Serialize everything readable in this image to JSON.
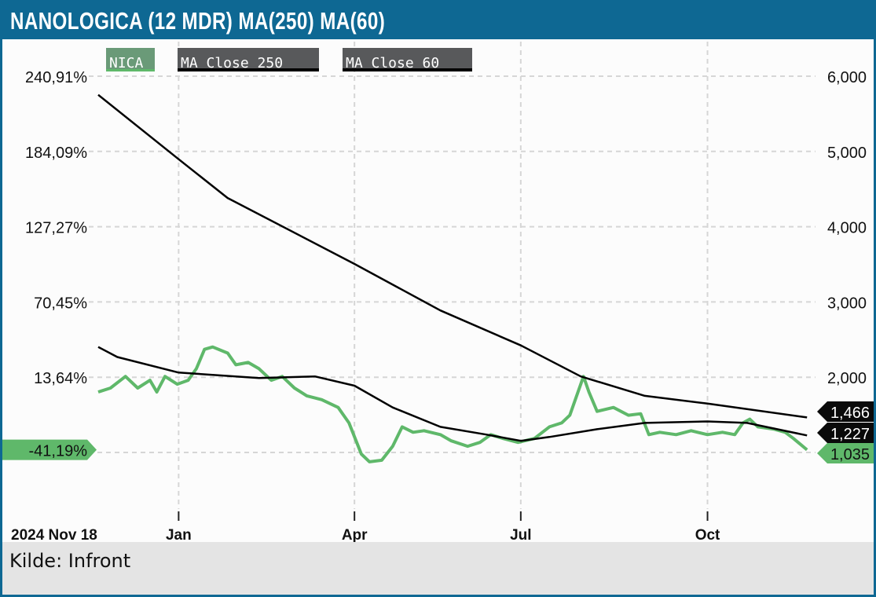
{
  "title": "NANOLOGICA (12 MDR) MA(250) MA(60)",
  "footer": {
    "source": "Kilde: Infront"
  },
  "legend": [
    {
      "label": "NICA",
      "color": "#6a9a78",
      "underline": "#5fb86a"
    },
    {
      "label": "MA Close 250",
      "color": "#58595b",
      "underline": "#000000"
    },
    {
      "label": "MA Close 60",
      "color": "#58595b",
      "underline": "#000000"
    }
  ],
  "colors": {
    "frame": "#0e6893",
    "nica": "#5fb86a",
    "ma": "#000000",
    "watermark": "#e8ebe6"
  },
  "watermark": "NICA",
  "chart_data": {
    "type": "line",
    "title": "NANOLOGICA (12 MDR) MA(250) MA(60)",
    "x_unit": "weeks since 2024 Nov 18",
    "start_label": "2024 Nov 18",
    "x_ticks": [
      {
        "x": 5.9,
        "label": "Jan"
      },
      {
        "x": 18.8,
        "label": "Apr"
      },
      {
        "x": 31.0,
        "label": "Jul"
      },
      {
        "x": 44.7,
        "label": "Oct"
      }
    ],
    "xlim": [
      0,
      52
    ],
    "ylim": [
      1000,
      6000
    ],
    "right_ticks": [
      {
        "v": 6000,
        "label": "6,000"
      },
      {
        "v": 5000,
        "label": "5,000"
      },
      {
        "v": 4000,
        "label": "4,000"
      },
      {
        "v": 3000,
        "label": "3,000"
      },
      {
        "v": 2000,
        "label": "2,000"
      }
    ],
    "left_ticks": [
      {
        "v": 6000,
        "label": "240,91%"
      },
      {
        "v": 5000,
        "label": "184,09%"
      },
      {
        "v": 4000,
        "label": "127,27%"
      },
      {
        "v": 3000,
        "label": "70,45%"
      },
      {
        "v": 2000,
        "label": "13,64%"
      }
    ],
    "current_pct": {
      "v": 1035,
      "label": "-41,19%"
    },
    "grid": true,
    "series": [
      {
        "name": "NICA",
        "color": "#5fb86a",
        "last_label": "1,035",
        "x": [
          0,
          0.9,
          2.0,
          2.9,
          3.8,
          4.3,
          4.9,
          5.8,
          6.6,
          7.2,
          7.8,
          8.4,
          9.5,
          10.1,
          11.0,
          11.8,
          12.7,
          13.5,
          14.4,
          15.3,
          16.4,
          17.6,
          18.4,
          19.3,
          19.9,
          20.8,
          21.6,
          22.3,
          23.1,
          23.9,
          25.1,
          25.9,
          27.1,
          28.0,
          28.8,
          29.7,
          30.8,
          32.0,
          33.1,
          34.0,
          34.6,
          35.2,
          35.6,
          36.0,
          36.6,
          37.8,
          38.9,
          39.8,
          40.4,
          41.2,
          42.4,
          43.5,
          44.7,
          45.8,
          46.7,
          47.3,
          47.8,
          48.4,
          49.6,
          50.4,
          51.0,
          52.0
        ],
        "y": [
          1804,
          1856,
          2010,
          1856,
          1959,
          1804,
          2010,
          1907,
          1959,
          2113,
          2371,
          2402,
          2320,
          2165,
          2196,
          2113,
          1959,
          2010,
          1856,
          1753,
          1701,
          1598,
          1392,
          979,
          876,
          897,
          1082,
          1340,
          1268,
          1289,
          1237,
          1155,
          1082,
          1134,
          1237,
          1186,
          1134,
          1186,
          1340,
          1392,
          1495,
          1804,
          2010,
          1804,
          1546,
          1598,
          1495,
          1515,
          1237,
          1268,
          1237,
          1289,
          1237,
          1268,
          1237,
          1392,
          1443,
          1340,
          1309,
          1268,
          1186,
          1035
        ]
      },
      {
        "name": "MA Close 250",
        "color": "#000000",
        "last_label": "1,466",
        "x": [
          0,
          5.9,
          9.5,
          18.8,
          25.1,
          31.0,
          35.4,
          40.1,
          44.7,
          52.0
        ],
        "y": [
          5753,
          4897,
          4381,
          3505,
          2887,
          2423,
          2010,
          1753,
          1649,
          1466
        ]
      },
      {
        "name": "MA Close 60",
        "color": "#000000",
        "last_label": "1,227",
        "x": [
          0,
          1.4,
          5.9,
          11.8,
          15.9,
          18.8,
          21.6,
          25.1,
          28.5,
          31.0,
          33.1,
          36.6,
          40.1,
          44.7,
          47.6,
          52.0
        ],
        "y": [
          2402,
          2268,
          2062,
          1990,
          2010,
          1887,
          1598,
          1340,
          1237,
          1155,
          1206,
          1309,
          1392,
          1412,
          1392,
          1227
        ]
      }
    ]
  }
}
